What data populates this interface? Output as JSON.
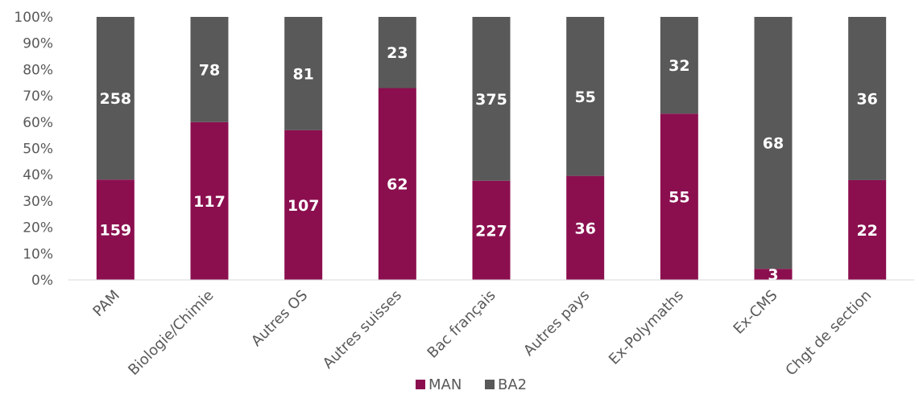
{
  "chart_data": {
    "type": "bar",
    "stacked": true,
    "normalized": true,
    "categories": [
      "PAM",
      "Biologie/Chimie",
      "Autres OS",
      "Autres suisses",
      "Bac français",
      "Autres pays",
      "Ex-Polymaths",
      "Ex-CMS",
      "Chgt de section"
    ],
    "series": [
      {
        "name": "MAN",
        "values": [
          159,
          117,
          107,
          62,
          227,
          36,
          55,
          3,
          22
        ],
        "color": "#8B0F4F"
      },
      {
        "name": "BA2",
        "values": [
          258,
          78,
          81,
          23,
          375,
          55,
          32,
          68,
          36
        ],
        "color": "#595959"
      }
    ],
    "yticks": [
      "0%",
      "10%",
      "20%",
      "30%",
      "40%",
      "50%",
      "60%",
      "70%",
      "80%",
      "90%",
      "100%"
    ],
    "ylim": [
      0,
      100
    ],
    "grid": false,
    "legend": "bottom",
    "data_labels": true
  }
}
